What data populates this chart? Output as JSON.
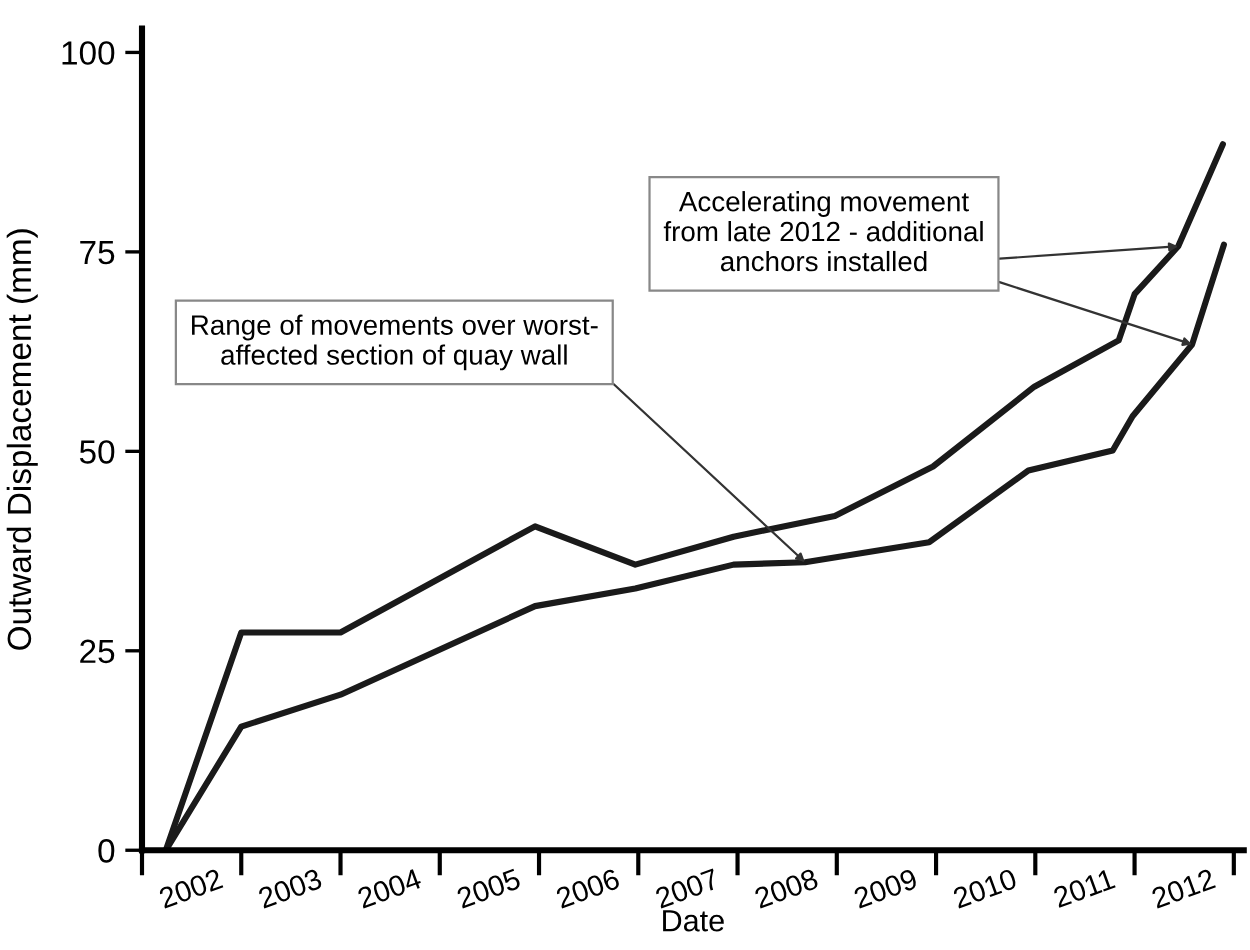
{
  "chart_data": {
    "type": "line",
    "xlabel": "Date",
    "ylabel": "Outward Displacement (mm)",
    "xlim": [
      2002,
      2013.1
    ],
    "ylim": [
      0,
      103
    ],
    "xticks": [
      {
        "value": 2002,
        "label": null
      },
      {
        "value": 2002.5,
        "label": "2002"
      },
      {
        "value": 2003,
        "label": null
      },
      {
        "value": 2003.5,
        "label": "2003"
      },
      {
        "value": 2004,
        "label": null
      },
      {
        "value": 2004.5,
        "label": "2004"
      },
      {
        "value": 2005,
        "label": null
      },
      {
        "value": 2005.5,
        "label": "2005"
      },
      {
        "value": 2006,
        "label": null
      },
      {
        "value": 2006.5,
        "label": "2006"
      },
      {
        "value": 2007,
        "label": null
      },
      {
        "value": 2007.5,
        "label": "2007"
      },
      {
        "value": 2008,
        "label": null
      },
      {
        "value": 2008.5,
        "label": "2008"
      },
      {
        "value": 2009,
        "label": null
      },
      {
        "value": 2009.5,
        "label": "2009"
      },
      {
        "value": 2010,
        "label": null
      },
      {
        "value": 2010.5,
        "label": "2010"
      },
      {
        "value": 2011,
        "label": null
      },
      {
        "value": 2011.5,
        "label": "2011"
      },
      {
        "value": 2012,
        "label": null
      },
      {
        "value": 2012.5,
        "label": "2012"
      },
      {
        "value": 2013,
        "label": null
      }
    ],
    "yticks": [
      0,
      25,
      50,
      75,
      100
    ],
    "grid": false,
    "marker": "none",
    "line_style": "solid",
    "series": [
      {
        "color": "#1a1a1a",
        "x": [
          2002.24,
          2003.0,
          2004.0,
          2005.96,
          2006.97,
          2007.96,
          2008.98,
          2009.97,
          2010.99,
          2011.84,
          2012.0,
          2012.44,
          2012.89
        ],
        "values": [
          0,
          27.3,
          27.3,
          40.6,
          35.8,
          39.3,
          41.9,
          48.1,
          58.1,
          63.9,
          69.7,
          75.7,
          88.5
        ]
      },
      {
        "color": "#1a1a1a",
        "x": [
          2002.24,
          2003.0,
          2004.0,
          2005.96,
          2006.97,
          2007.96,
          2008.68,
          2009.93,
          2010.93,
          2011.78,
          2011.98,
          2012.58,
          2012.9
        ],
        "values": [
          0,
          15.5,
          19.5,
          30.6,
          32.8,
          35.8,
          36.1,
          38.6,
          47.6,
          50.1,
          54.4,
          63.4,
          75.9
        ]
      }
    ],
    "annotations": [
      {
        "text": "Range of movements over worst-\naffected section of quay wall",
        "x": 2008.68,
        "y": 36.1
      },
      {
        "text": "Accelerating movement\nfrom late 2012 - additional\nanchors installed",
        "x": 2012.44,
        "y": 75.7
      }
    ]
  }
}
